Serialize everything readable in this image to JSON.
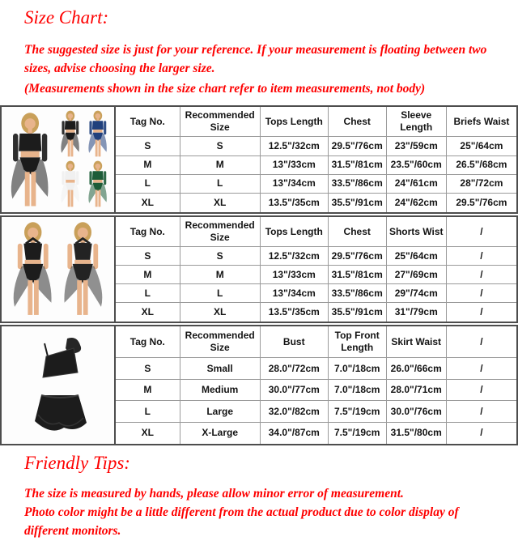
{
  "colors": {
    "accent_red": "#fe0000",
    "table_text": "#141414",
    "section_border": "#4d4d4d",
    "grid_line": "#9a9a9a",
    "outfit_black": "#1c1c1c",
    "outfit_navy": "#20407c",
    "outfit_white": "#f0f0f0",
    "outfit_green": "#1d5c38"
  },
  "header": {
    "title": "Size Chart:",
    "note_1": "The suggested size is just for your reference. If your measurement is floating between two sizes, advise choosing the larger size.",
    "note_2": "(Measurements shown in the size chart refer to item measurements, not body)"
  },
  "tables": [
    {
      "photo_description": "model wearing black lace long-sleeve crop top with asymmetric skirt and briefs; small variant photos in black (back view), navy blue, white and green",
      "headers": [
        "Tag No.",
        "Recommended Size",
        "Tops Length",
        "Chest",
        "Sleeve Length",
        "Briefs Waist"
      ],
      "rows": [
        [
          "S",
          "S",
          "12.5\"/32cm",
          "29.5\"/76cm",
          "23\"/59cm",
          "25\"/64cm"
        ],
        [
          "M",
          "M",
          "13\"/33cm",
          "31.5\"/81cm",
          "23.5\"/60cm",
          "26.5\"/68cm"
        ],
        [
          "L",
          "L",
          "13\"/34cm",
          "33.5\"/86cm",
          "24\"/61cm",
          "28\"/72cm"
        ],
        [
          "XL",
          "XL",
          "13.5\"/35cm",
          "35.5\"/91cm",
          "24\"/62cm",
          "29.5\"/76cm"
        ]
      ]
    },
    {
      "photo_description": "front and back view of model wearing black halter crop top with high-waist briefs and sheer mesh high-low skirt",
      "headers": [
        "Tag No.",
        "Recommended Size",
        "Tops Length",
        "Chest",
        "Shorts Wist",
        "/"
      ],
      "rows": [
        [
          "S",
          "S",
          "12.5\"/32cm",
          "29.5\"/76cm",
          "25\"/64cm",
          "/"
        ],
        [
          "M",
          "M",
          "13\"/33cm",
          "31.5\"/81cm",
          "27\"/69cm",
          "/"
        ],
        [
          "L",
          "L",
          "13\"/34cm",
          "33.5\"/86cm",
          "29\"/74cm",
          "/"
        ],
        [
          "XL",
          "XL",
          "13.5\"/35cm",
          "35.5\"/91cm",
          "31\"/79cm",
          "/"
        ]
      ]
    },
    {
      "photo_description": "flat shot of black lace one-shoulder crop top and ruffled lace skirt set",
      "headers": [
        "Tag No.",
        "Recommended Size",
        "Bust",
        "Top Front Length",
        "Skirt Waist",
        "/"
      ],
      "rows": [
        [
          "S",
          "Small",
          "28.0\"/72cm",
          "7.0\"/18cm",
          "26.0\"/66cm",
          "/"
        ],
        [
          "M",
          "Medium",
          "30.0\"/77cm",
          "7.0\"/18cm",
          "28.0\"/71cm",
          "/"
        ],
        [
          "L",
          "Large",
          "32.0\"/82cm",
          "7.5\"/19cm",
          "30.0\"/76cm",
          "/"
        ],
        [
          "XL",
          "X-Large",
          "34.0\"/87cm",
          "7.5\"/19cm",
          "31.5\"/80cm",
          "/"
        ]
      ]
    }
  ],
  "footer": {
    "title": "Friendly Tips:",
    "tip_1": "The size is measured by hands, please allow minor error of measurement.",
    "tip_2": "Photo color might be a little different from the actual product due to color display of different monitors."
  }
}
